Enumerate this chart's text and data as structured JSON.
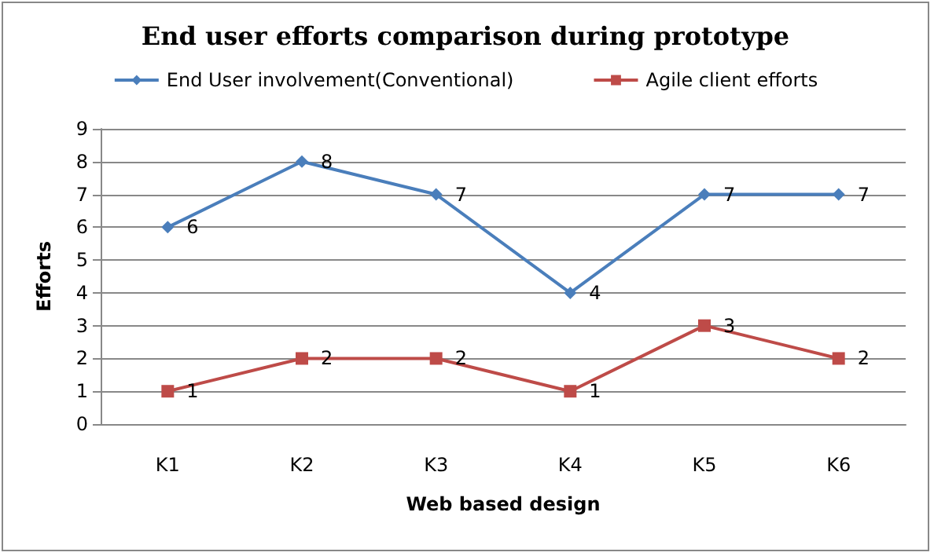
{
  "chart_data": {
    "type": "line",
    "title": "End user efforts comparison during prototype",
    "xlabel": "Web based design",
    "ylabel": "Efforts",
    "categories": [
      "K1",
      "K2",
      "K3",
      "K4",
      "K5",
      "K6"
    ],
    "series": [
      {
        "name": "End User involvement(Conventional)",
        "color": "#4a7ebb",
        "marker": "diamond",
        "values": [
          6,
          8,
          7,
          4,
          7,
          7
        ]
      },
      {
        "name": "Agile client efforts",
        "color": "#be4b48",
        "marker": "square",
        "values": [
          1,
          2,
          2,
          1,
          3,
          2
        ]
      }
    ],
    "ylim": [
      0,
      9
    ],
    "yticks": [
      0,
      1,
      2,
      3,
      4,
      5,
      6,
      7,
      8,
      9
    ],
    "grid": "y",
    "legend": "top",
    "data_labels": true
  }
}
